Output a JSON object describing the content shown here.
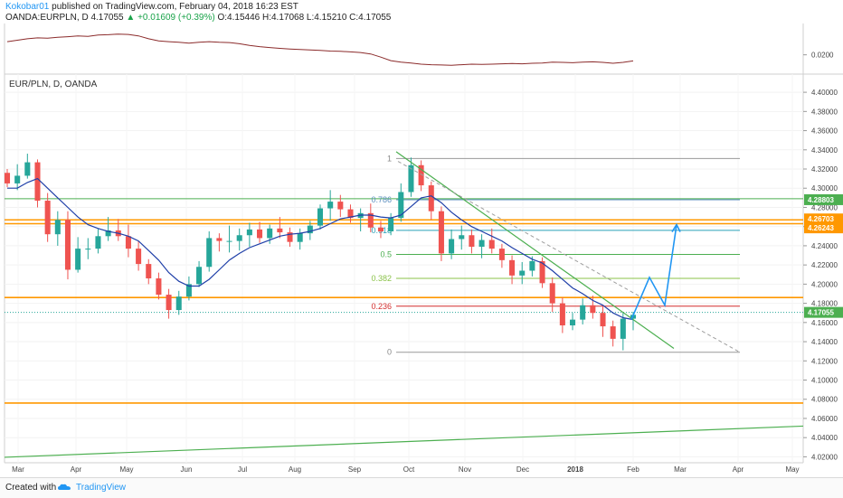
{
  "header": {
    "author": "Kokobar01",
    "published_text": "published on TradingView.com, February 04, 2018 16:23 EST",
    "symbol": "OANDA:EURPLN, D",
    "last": "4.17055",
    "change": "+0.01609 (+0.39%)",
    "ohlc": "O:4.15446 H:4.17068 L:4.15210 C:4.17055"
  },
  "footer": {
    "created_with": "Created with",
    "brand": "TradingView"
  },
  "colors": {
    "up_candle": "#26a69a",
    "down_candle": "#ef5350",
    "ma": "#1f3fa8",
    "fib_line": "#9e9e9e",
    "support_orange": "#ff9800",
    "trend_green": "#4caf50",
    "projection": "#2196F3",
    "indicator": "#8b2b2b"
  },
  "chart_data": {
    "type": "candlestick",
    "pane_label": "EUR/PLN, D, OANDA",
    "y_ticks": [
      "4.40000",
      "4.38000",
      "4.36000",
      "4.34000",
      "4.32000",
      "4.30000",
      "4.28000",
      "4.26000",
      "4.24000",
      "4.22000",
      "4.20000",
      "4.18000",
      "4.16000",
      "4.14000",
      "4.12000",
      "4.10000",
      "4.08000",
      "4.06000",
      "4.04000",
      "4.02000"
    ],
    "ylim": [
      4.0138,
      4.4114
    ],
    "x_ticks": [
      "Mar",
      "Apr",
      "May",
      "Jun",
      "Jul",
      "Aug",
      "Sep",
      "Oct",
      "Nov",
      "Dec",
      "2018",
      "Feb",
      "Mar",
      "Apr",
      "May"
    ],
    "price_labels": [
      {
        "value": 4.28803,
        "text": "4.28803",
        "color": "#4caf50"
      },
      {
        "value": 4.26703,
        "text": "4.26703",
        "color": "#ff9800"
      },
      {
        "value": 4.26243,
        "text": "4.26243",
        "color": "#ff9800"
      },
      {
        "value": 4.17055,
        "text": "4.17055",
        "color": "#4caf50"
      }
    ],
    "indicator_tick": "0.0200",
    "fib_levels": [
      {
        "label": "1",
        "value": 4.331,
        "color": "#888888"
      },
      {
        "label": "0.786",
        "value": 4.288,
        "color": "#5b8fbf"
      },
      {
        "label": "0.618",
        "value": 4.256,
        "color": "#2aa0b8"
      },
      {
        "label": "0.5",
        "value": 4.231,
        "color": "#4caf50"
      },
      {
        "label": "0.382",
        "value": 4.206,
        "color": "#8bc34a"
      },
      {
        "label": "0.236",
        "value": 4.177,
        "color": "#d32f2f"
      },
      {
        "label": "0",
        "value": 4.129,
        "color": "#888888"
      }
    ],
    "horizontal_lines": [
      4.289,
      4.267,
      4.263,
      4.186,
      4.076
    ],
    "ohlc": [
      [
        4.316,
        4.32,
        4.301,
        4.305
      ],
      [
        4.305,
        4.325,
        4.298,
        4.313
      ],
      [
        4.313,
        4.336,
        4.31,
        4.327
      ],
      [
        4.327,
        4.33,
        4.28,
        4.287
      ],
      [
        4.287,
        4.295,
        4.244,
        4.252
      ],
      [
        4.252,
        4.276,
        4.24,
        4.267
      ],
      [
        4.267,
        4.276,
        4.205,
        4.215
      ],
      [
        4.215,
        4.249,
        4.212,
        4.237
      ],
      [
        4.237,
        4.248,
        4.226,
        4.237
      ],
      [
        4.237,
        4.258,
        4.232,
        4.25
      ],
      [
        4.25,
        4.27,
        4.245,
        4.256
      ],
      [
        4.256,
        4.268,
        4.245,
        4.25
      ],
      [
        4.25,
        4.262,
        4.228,
        4.237
      ],
      [
        4.237,
        4.245,
        4.214,
        4.221
      ],
      [
        4.221,
        4.226,
        4.2,
        4.206
      ],
      [
        4.206,
        4.212,
        4.184,
        4.189
      ],
      [
        4.189,
        4.195,
        4.164,
        4.173
      ],
      [
        4.173,
        4.193,
        4.168,
        4.187
      ],
      [
        4.187,
        4.208,
        4.183,
        4.2
      ],
      [
        4.2,
        4.224,
        4.197,
        4.218
      ],
      [
        4.218,
        4.255,
        4.213,
        4.248
      ],
      [
        4.248,
        4.253,
        4.234,
        4.245
      ],
      [
        4.245,
        4.261,
        4.233,
        4.245
      ],
      [
        4.245,
        4.258,
        4.235,
        4.251
      ],
      [
        4.251,
        4.264,
        4.239,
        4.257
      ],
      [
        4.257,
        4.265,
        4.243,
        4.248
      ],
      [
        4.248,
        4.262,
        4.242,
        4.258
      ],
      [
        4.258,
        4.27,
        4.248,
        4.254
      ],
      [
        4.254,
        4.259,
        4.239,
        4.244
      ],
      [
        4.244,
        4.258,
        4.236,
        4.253
      ],
      [
        4.253,
        4.266,
        4.246,
        4.261
      ],
      [
        4.261,
        4.283,
        4.257,
        4.279
      ],
      [
        4.279,
        4.298,
        4.266,
        4.286
      ],
      [
        4.286,
        4.293,
        4.27,
        4.278
      ],
      [
        4.278,
        4.283,
        4.264,
        4.269
      ],
      [
        4.269,
        4.279,
        4.255,
        4.274
      ],
      [
        4.274,
        4.284,
        4.254,
        4.259
      ],
      [
        4.259,
        4.266,
        4.248,
        4.255
      ],
      [
        4.255,
        4.274,
        4.251,
        4.269
      ],
      [
        4.269,
        4.305,
        4.265,
        4.296
      ],
      [
        4.296,
        4.332,
        4.291,
        4.324
      ],
      [
        4.324,
        4.329,
        4.297,
        4.303
      ],
      [
        4.303,
        4.307,
        4.267,
        4.276
      ],
      [
        4.276,
        4.281,
        4.224,
        4.232
      ],
      [
        4.232,
        4.257,
        4.226,
        4.247
      ],
      [
        4.247,
        4.261,
        4.236,
        4.251
      ],
      [
        4.251,
        4.257,
        4.232,
        4.239
      ],
      [
        4.239,
        4.252,
        4.227,
        4.246
      ],
      [
        4.246,
        4.258,
        4.232,
        4.237
      ],
      [
        4.237,
        4.242,
        4.217,
        4.225
      ],
      [
        4.225,
        4.23,
        4.2,
        4.209
      ],
      [
        4.209,
        4.223,
        4.2,
        4.214
      ],
      [
        4.214,
        4.229,
        4.208,
        4.224
      ],
      [
        4.224,
        4.228,
        4.196,
        4.201
      ],
      [
        4.201,
        4.207,
        4.171,
        4.18
      ],
      [
        4.18,
        4.186,
        4.149,
        4.157
      ],
      [
        4.157,
        4.17,
        4.152,
        4.163
      ],
      [
        4.163,
        4.185,
        4.158,
        4.178
      ],
      [
        4.178,
        4.188,
        4.164,
        4.17
      ],
      [
        4.17,
        4.177,
        4.145,
        4.156
      ],
      [
        4.156,
        4.162,
        4.135,
        4.143
      ],
      [
        4.143,
        4.17,
        4.131,
        4.164
      ],
      [
        4.164,
        4.171,
        4.152,
        4.168
      ]
    ],
    "ma": [
      4.3,
      4.3,
      4.306,
      4.31,
      4.3,
      4.29,
      4.28,
      4.27,
      4.262,
      4.258,
      4.255,
      4.253,
      4.25,
      4.245,
      4.235,
      4.225,
      4.212,
      4.203,
      4.198,
      4.198,
      4.205,
      4.215,
      4.225,
      4.232,
      4.238,
      4.242,
      4.246,
      4.25,
      4.252,
      4.253,
      4.255,
      4.258,
      4.263,
      4.268,
      4.27,
      4.272,
      4.272,
      4.27,
      4.269,
      4.272,
      4.281,
      4.29,
      4.292,
      4.285,
      4.275,
      4.267,
      4.26,
      4.255,
      4.25,
      4.245,
      4.238,
      4.232,
      4.226,
      4.222,
      4.214,
      4.205,
      4.196,
      4.19,
      4.183,
      4.178,
      4.17,
      4.165,
      4.163
    ],
    "indicator": [
      0.0245,
      0.025,
      0.0255,
      0.0258,
      0.0257,
      0.026,
      0.0262,
      0.0265,
      0.0263,
      0.0268,
      0.0269,
      0.0271,
      0.027,
      0.0265,
      0.0255,
      0.0248,
      0.0245,
      0.0243,
      0.024,
      0.0243,
      0.0245,
      0.0243,
      0.0242,
      0.0238,
      0.0232,
      0.0228,
      0.0225,
      0.0222,
      0.022,
      0.0218,
      0.0217,
      0.0215,
      0.0213,
      0.0212,
      0.021,
      0.0208,
      0.0203,
      0.0192,
      0.018,
      0.0175,
      0.0172,
      0.0168,
      0.0166,
      0.0165,
      0.0164,
      0.0166,
      0.0168,
      0.0167,
      0.0168,
      0.0169,
      0.017,
      0.0169,
      0.0171,
      0.0172,
      0.0175,
      0.0174,
      0.0173,
      0.0175,
      0.0176,
      0.0174,
      0.0171,
      0.0174,
      0.0179
    ]
  }
}
